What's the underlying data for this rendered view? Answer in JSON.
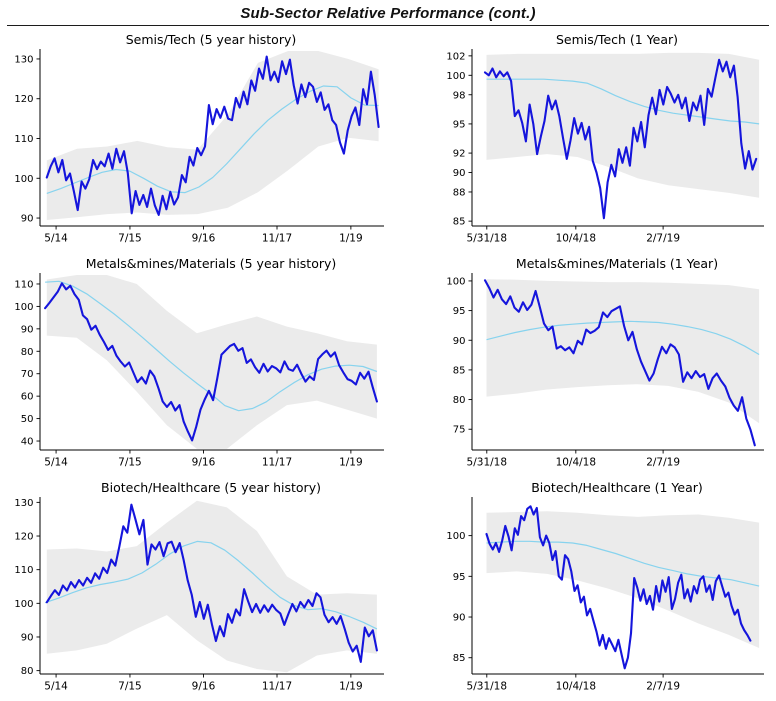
{
  "header": {
    "title": "Sub-Sector Relative Performance (cont.)"
  },
  "colors": {
    "price_line": "#1515dc",
    "moving_average": "#87d3ee",
    "band": "#ebebeb",
    "axis": "#000000",
    "text": "#000000"
  },
  "chart_data": [
    {
      "type": "line",
      "title": "Semis/Tech (5 year history)",
      "column": "left",
      "ylim": [
        88,
        132
      ],
      "yticks": [
        90,
        100,
        110,
        120,
        130
      ],
      "xticks": [
        {
          "f": 0.047,
          "label": "5/14"
        },
        {
          "f": 0.263,
          "label": "7/15"
        },
        {
          "f": 0.478,
          "label": "9/16"
        },
        {
          "f": 0.693,
          "label": "11/17"
        },
        {
          "f": 0.909,
          "label": "1/19"
        }
      ],
      "series": {
        "band": {
          "x0": 0.02,
          "x1": 0.99,
          "top": [
            104.5,
            107.4,
            108.0,
            109.4,
            107.8,
            107.2,
            116.0,
            129.0,
            132.0,
            132.0,
            130.0,
            127.4
          ],
          "bottom": [
            89.5,
            90.2,
            91.0,
            91.4,
            90.8,
            91.0,
            92.6,
            96.5,
            102.0,
            108.0,
            110.2,
            109.3
          ]
        },
        "ma": {
          "x0": 0.02,
          "x1": 0.99,
          "y": [
            96.2,
            97.4,
            98.8,
            100.2,
            101.5,
            102.2,
            101.8,
            100.0,
            98.0,
            96.6,
            96.4,
            97.8,
            100.2,
            103.6,
            107.4,
            111.2,
            114.6,
            117.4,
            119.8,
            121.8,
            123.2,
            123.0,
            120.2,
            118.4,
            118.3
          ]
        },
        "price": {
          "x0": 0.02,
          "x1": 0.99,
          "y": [
            100.2,
            103.0,
            105.0,
            101.5,
            104.6,
            99.5,
            101.2,
            96.8,
            92.0,
            99.2,
            97.4,
            99.8,
            104.6,
            102.3,
            104.2,
            103.0,
            106.2,
            102.4,
            107.4,
            104.0,
            106.8,
            101.3,
            91.2,
            96.8,
            93.3,
            95.8,
            92.8,
            97.4,
            93.2,
            90.8,
            95.6,
            92.2,
            96.6,
            93.4,
            95.2,
            100.8,
            99.0,
            105.4,
            103.2,
            107.6,
            105.8,
            108.0,
            118.4,
            113.6,
            117.4,
            115.2,
            118.0,
            115.0,
            114.6,
            120.2,
            117.8,
            121.8,
            118.6,
            124.6,
            122.0,
            127.6,
            125.0,
            130.6,
            124.6,
            126.8,
            124.2,
            129.4,
            126.2,
            129.8,
            123.4,
            118.8,
            123.6,
            120.4,
            124.0,
            123.0,
            119.2,
            121.6,
            117.2,
            118.6,
            114.6,
            113.4,
            109.0,
            106.2,
            112.0,
            115.6,
            117.8,
            113.4,
            122.4,
            118.6,
            126.8,
            121.0,
            112.9
          ]
        }
      }
    },
    {
      "type": "line",
      "title": "Semis/Tech (1 Year)",
      "column": "right",
      "ylim": [
        84.5,
        102.5
      ],
      "yticks": [
        85,
        88,
        90,
        92,
        95,
        98,
        100,
        102
      ],
      "xticks": [
        {
          "f": 0.051,
          "label": "5/31/18"
        },
        {
          "f": 0.358,
          "label": "10/4/18"
        },
        {
          "f": 0.659,
          "label": "2/7/19"
        }
      ],
      "series": {
        "band": {
          "x0": 0.05,
          "x1": 0.99,
          "top": [
            102.1,
            102.2,
            102.2,
            102.2,
            102.2,
            102.2,
            102.3,
            102.3,
            102.2,
            101.6
          ],
          "bottom": [
            91.3,
            91.6,
            91.9,
            91.6,
            90.6,
            89.4,
            88.7,
            88.3,
            87.9,
            87.4
          ]
        },
        "ma": {
          "x0": 0.05,
          "x1": 0.99,
          "y": [
            99.6,
            99.6,
            99.6,
            99.6,
            99.6,
            99.5,
            99.4,
            99.2,
            98.6,
            97.9,
            97.3,
            96.8,
            96.4,
            96.1,
            95.9,
            95.7,
            95.5,
            95.3,
            95.2,
            95.0
          ]
        },
        "price": {
          "x0": 0.045,
          "x1": 0.98,
          "y": [
            100.3,
            100.0,
            100.7,
            99.8,
            100.4,
            99.9,
            100.3,
            99.4,
            95.8,
            96.4,
            95.1,
            93.2,
            97.0,
            95.0,
            91.9,
            93.7,
            95.3,
            97.9,
            96.5,
            97.4,
            95.8,
            93.5,
            91.4,
            93.3,
            95.6,
            94.0,
            95.1,
            93.4,
            94.7,
            91.2,
            90.0,
            88.4,
            85.3,
            89.0,
            90.8,
            89.6,
            92.4,
            91.0,
            92.6,
            90.7,
            94.6,
            93.2,
            95.2,
            92.6,
            95.9,
            97.7,
            96.0,
            98.5,
            97.0,
            98.8,
            98.1,
            97.2,
            98.0,
            96.6,
            97.7,
            95.3,
            97.2,
            96.4,
            97.9,
            94.9,
            98.6,
            97.8,
            99.7,
            101.6,
            100.4,
            101.4,
            99.8,
            101.0,
            97.8,
            93.0,
            90.4,
            92.2,
            90.3,
            91.4
          ]
        }
      }
    },
    {
      "type": "line",
      "title": "Metals&mines/Materials (5 year history)",
      "column": "left",
      "ylim": [
        36,
        114
      ],
      "yticks": [
        40,
        50,
        60,
        70,
        80,
        90,
        100,
        110
      ],
      "xticks": [
        {
          "f": 0.047,
          "label": "5/14"
        },
        {
          "f": 0.263,
          "label": "7/15"
        },
        {
          "f": 0.478,
          "label": "9/16"
        },
        {
          "f": 0.693,
          "label": "11/17"
        },
        {
          "f": 0.909,
          "label": "1/19"
        }
      ],
      "series": {
        "band": {
          "x0": 0.02,
          "x1": 0.985,
          "top": [
            112.0,
            114.0,
            114.0,
            110.0,
            98.0,
            88.0,
            92.0,
            95.5,
            91.0,
            88.0,
            84.5,
            83.0
          ],
          "bottom": [
            87.0,
            86.0,
            76.0,
            62.0,
            47.0,
            36.5,
            36.5,
            47.0,
            56.0,
            58.0,
            54.0,
            50.0
          ]
        },
        "ma": {
          "x0": 0.015,
          "x1": 0.985,
          "y": [
            110.8,
            111.2,
            109.0,
            105.6,
            101.2,
            96.6,
            91.6,
            86.4,
            81.0,
            75.6,
            70.4,
            65.6,
            61.0,
            55.8,
            53.5,
            54.5,
            57.5,
            62.0,
            66.0,
            69.5,
            72.0,
            73.4,
            73.8,
            73.2,
            71.0
          ]
        },
        "price": {
          "x0": 0.015,
          "x1": 0.985,
          "y": [
            99.2,
            101.5,
            104.0,
            106.5,
            110.3,
            107.6,
            109.2,
            105.5,
            103.0,
            96.0,
            94.3,
            89.6,
            91.4,
            87.4,
            84.2,
            80.6,
            82.4,
            78.0,
            75.4,
            73.2,
            75.0,
            70.6,
            66.2,
            68.4,
            65.6,
            71.4,
            68.8,
            63.5,
            57.6,
            55.2,
            57.4,
            53.6,
            56.0,
            48.6,
            44.2,
            40.3,
            46.5,
            54.0,
            58.5,
            62.4,
            58.2,
            68.0,
            78.5,
            80.4,
            82.3,
            83.3,
            80.2,
            81.4,
            74.8,
            76.4,
            72.9,
            70.4,
            74.4,
            71.0,
            73.4,
            72.4,
            70.6,
            75.5,
            72.0,
            71.3,
            74.0,
            70.0,
            66.5,
            68.8,
            67.2,
            76.5,
            78.6,
            80.3,
            77.6,
            79.5,
            73.8,
            70.6,
            67.6,
            66.8,
            65.2,
            70.4,
            67.8,
            70.9,
            64.0,
            57.6
          ]
        }
      }
    },
    {
      "type": "line",
      "title": "Metals&mines/Materials (1 Year)",
      "column": "right",
      "ylim": [
        71.5,
        101
      ],
      "yticks": [
        75,
        80,
        85,
        90,
        95,
        100
      ],
      "xticks": [
        {
          "f": 0.051,
          "label": "5/31/18"
        },
        {
          "f": 0.358,
          "label": "10/4/18"
        },
        {
          "f": 0.659,
          "label": "2/7/19"
        }
      ],
      "series": {
        "band": {
          "x0": 0.05,
          "x1": 0.99,
          "top": [
            100.3,
            100.2,
            100.0,
            99.9,
            99.8,
            99.8,
            99.7,
            99.5,
            99.3,
            98.6
          ],
          "bottom": [
            80.5,
            81.0,
            81.7,
            82.1,
            82.4,
            82.6,
            82.3,
            81.3,
            79.5,
            76.0
          ]
        },
        "ma": {
          "x0": 0.05,
          "x1": 0.99,
          "y": [
            90.1,
            90.7,
            91.3,
            91.8,
            92.2,
            92.5,
            92.7,
            92.9,
            93.0,
            93.1,
            93.2,
            93.1,
            93.0,
            92.7,
            92.3,
            91.8,
            91.1,
            90.2,
            89.0,
            87.6
          ]
        },
        "price": {
          "x0": 0.045,
          "x1": 0.975,
          "y": [
            100.1,
            98.8,
            97.2,
            98.5,
            96.9,
            96.1,
            97.4,
            95.5,
            94.8,
            96.4,
            95.1,
            96.0,
            98.3,
            95.6,
            92.8,
            91.7,
            92.3,
            88.6,
            89.0,
            88.3,
            88.8,
            87.8,
            89.9,
            89.3,
            91.8,
            91.2,
            91.6,
            92.2,
            94.7,
            93.9,
            94.9,
            95.3,
            95.7,
            92.4,
            90.0,
            91.4,
            88.5,
            86.4,
            84.8,
            83.2,
            84.4,
            86.8,
            88.9,
            87.8,
            89.3,
            88.8,
            87.6,
            83.0,
            84.6,
            83.6,
            84.8,
            83.8,
            84.3,
            81.8,
            83.6,
            84.4,
            83.2,
            82.2,
            80.3,
            79.0,
            78.1,
            80.4,
            76.8,
            74.9,
            72.3
          ]
        }
      }
    },
    {
      "type": "line",
      "title": "Biotech/Healthcare (5 year history)",
      "column": "left",
      "ylim": [
        79,
        131
      ],
      "yticks": [
        80,
        90,
        100,
        110,
        120,
        130
      ],
      "xticks": [
        {
          "f": 0.047,
          "label": "5/14"
        },
        {
          "f": 0.263,
          "label": "7/15"
        },
        {
          "f": 0.478,
          "label": "9/16"
        },
        {
          "f": 0.693,
          "label": "11/17"
        },
        {
          "f": 0.909,
          "label": "1/19"
        }
      ],
      "series": {
        "band": {
          "x0": 0.02,
          "x1": 0.985,
          "top": [
            116.0,
            116.3,
            115.4,
            117.0,
            124.0,
            130.5,
            128.5,
            121.5,
            108.0,
            102.6,
            103.0,
            102.6
          ],
          "bottom": [
            85.0,
            86.0,
            88.0,
            92.5,
            96.5,
            89.0,
            83.0,
            80.5,
            79.5,
            84.5,
            86.0,
            85.0
          ]
        },
        "ma": {
          "x0": 0.015,
          "x1": 0.985,
          "y": [
            100.2,
            101.6,
            103.2,
            104.6,
            105.6,
            106.3,
            107.2,
            109.0,
            111.6,
            114.6,
            117.0,
            118.4,
            118.0,
            115.8,
            112.6,
            109.0,
            105.2,
            101.8,
            99.4,
            98.1,
            98.4,
            97.5,
            96.1,
            94.4,
            92.4
          ]
        },
        "price": {
          "x0": 0.02,
          "x1": 0.985,
          "y": [
            100.3,
            102.2,
            103.9,
            102.5,
            105.3,
            103.8,
            106.3,
            104.7,
            106.9,
            105.3,
            107.6,
            106.1,
            108.9,
            107.3,
            110.6,
            109.0,
            113.0,
            111.2,
            116.8,
            122.9,
            121.0,
            129.3,
            125.0,
            120.5,
            124.8,
            111.5,
            117.5,
            116.0,
            118.2,
            114.0,
            117.8,
            118.3,
            115.2,
            117.9,
            112.8,
            106.8,
            102.6,
            96.0,
            100.4,
            95.4,
            99.6,
            93.8,
            88.8,
            93.2,
            90.2,
            96.8,
            94.2,
            98.2,
            96.4,
            104.2,
            100.6,
            97.4,
            99.8,
            97.2,
            99.4,
            97.5,
            99.6,
            98.0,
            97.0,
            93.6,
            96.8,
            99.8,
            97.6,
            100.4,
            98.8,
            101.0,
            99.2,
            103.0,
            101.8,
            96.6,
            94.4,
            95.9,
            93.9,
            96.2,
            92.4,
            88.3,
            85.7,
            87.4,
            82.6,
            92.8,
            90.2,
            92.0,
            86.0
          ]
        }
      }
    },
    {
      "type": "line",
      "title": "Biotech/Healthcare (1 Year)",
      "column": "right",
      "ylim": [
        83,
        104.5
      ],
      "yticks": [
        85,
        90,
        95,
        100
      ],
      "xticks": [
        {
          "f": 0.051,
          "label": "5/31/18"
        },
        {
          "f": 0.358,
          "label": "10/4/18"
        },
        {
          "f": 0.659,
          "label": "2/7/19"
        }
      ],
      "series": {
        "band": {
          "x0": 0.05,
          "x1": 0.99,
          "top": [
            102.8,
            102.9,
            103.0,
            102.8,
            102.5,
            102.3,
            102.5,
            102.6,
            102.2,
            101.6
          ],
          "bottom": [
            95.4,
            95.6,
            95.3,
            94.5,
            93.5,
            92.3,
            90.8,
            89.2,
            87.8,
            86.2
          ]
        },
        "ma": {
          "x0": 0.05,
          "x1": 0.99,
          "y": [
            99.1,
            99.2,
            99.3,
            99.3,
            99.2,
            99.2,
            99.1,
            98.8,
            98.3,
            97.8,
            97.2,
            96.6,
            96.1,
            95.7,
            95.3,
            95.0,
            94.8,
            94.6,
            94.2,
            93.8
          ]
        },
        "price": {
          "x0": 0.05,
          "x1": 0.96,
          "y": [
            100.2,
            99.0,
            98.3,
            99.1,
            98.0,
            99.4,
            101.2,
            99.9,
            98.2,
            100.9,
            100.1,
            102.4,
            101.9,
            103.3,
            103.6,
            102.6,
            103.4,
            99.8,
            98.8,
            100.0,
            99.1,
            97.0,
            98.1,
            95.0,
            94.6,
            97.6,
            97.1,
            95.6,
            93.2,
            93.9,
            91.8,
            92.5,
            90.2,
            91.0,
            89.6,
            88.2,
            86.5,
            87.8,
            86.1,
            87.4,
            86.6,
            85.8,
            87.2,
            85.4,
            83.7,
            85.0,
            88.0,
            94.8,
            93.6,
            92.0,
            93.4,
            91.6,
            92.6,
            90.9,
            93.8,
            91.9,
            94.5,
            93.1,
            94.9,
            91.0,
            92.2,
            94.2,
            95.2,
            92.3,
            93.4,
            91.9,
            93.8,
            92.9,
            94.6,
            95.0,
            93.1,
            93.9,
            92.1,
            94.4,
            95.1,
            93.8,
            92.5,
            93.0,
            91.4,
            90.3,
            90.9,
            89.2,
            88.4,
            87.8,
            87.1
          ]
        }
      }
    }
  ]
}
